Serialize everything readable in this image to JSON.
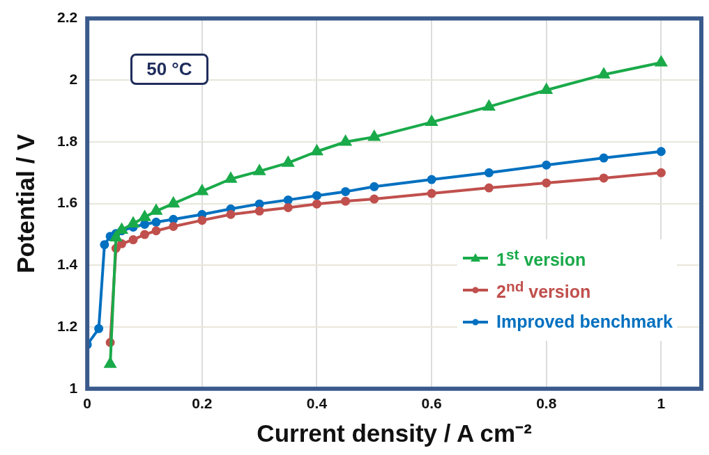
{
  "chart_data": {
    "type": "line",
    "xlabel": "Current density / A cm⁻²",
    "ylabel": "Potential / V",
    "xlim": [
      0,
      1.07
    ],
    "ylim": [
      1,
      2.2
    ],
    "xticks": [
      0,
      0.2,
      0.4,
      0.6,
      0.8,
      1
    ],
    "yticks": [
      1,
      1.2,
      1.4,
      1.6,
      1.8,
      2,
      2.2
    ],
    "grid": true,
    "legend": "bottom right",
    "marker": "circle",
    "annotations": [
      "50 °C"
    ],
    "series": [
      {
        "name": "1$^{st}$ version",
        "color": "#1aaa4a",
        "marker": "triangle",
        "x": [
          0.04,
          0.05,
          0.06,
          0.08,
          0.1,
          0.12,
          0.15,
          0.2,
          0.25,
          0.3,
          0.35,
          0.4,
          0.45,
          0.5,
          0.6,
          0.7,
          0.8,
          0.9,
          1
        ],
        "values": [
          1.08,
          1.49,
          1.515,
          1.535,
          1.556,
          1.576,
          1.6,
          1.64,
          1.68,
          1.705,
          1.732,
          1.769,
          1.8,
          1.816,
          1.864,
          1.914,
          1.968,
          2.018,
          2.057
        ]
      },
      {
        "name": "2$^{nd}$ version",
        "color": "#c0504d",
        "x": [
          0.04,
          0.05,
          0.06,
          0.08,
          0.1,
          0.12,
          0.15,
          0.2,
          0.25,
          0.3,
          0.35,
          0.4,
          0.45,
          0.5,
          0.6,
          0.7,
          0.8,
          0.9,
          1
        ],
        "values": [
          1.15,
          1.455,
          1.47,
          1.483,
          1.5,
          1.512,
          1.526,
          1.546,
          1.565,
          1.576,
          1.587,
          1.599,
          1.608,
          1.615,
          1.633,
          1.651,
          1.667,
          1.683,
          1.7
        ]
      },
      {
        "name": "Improved benchmark",
        "color": "#0070c0",
        "x": [
          0,
          0.02,
          0.03,
          0.04,
          0.05,
          0.06,
          0.08,
          0.1,
          0.12,
          0.15,
          0.2,
          0.25,
          0.3,
          0.35,
          0.4,
          0.45,
          0.5,
          0.6,
          0.7,
          0.8,
          0.9,
          1
        ],
        "values": [
          1.143,
          1.195,
          1.467,
          1.494,
          1.503,
          1.512,
          1.524,
          1.533,
          1.54,
          1.549,
          1.565,
          1.583,
          1.599,
          1.612,
          1.626,
          1.639,
          1.655,
          1.678,
          1.7,
          1.725,
          1.748,
          1.769
        ]
      }
    ]
  }
}
